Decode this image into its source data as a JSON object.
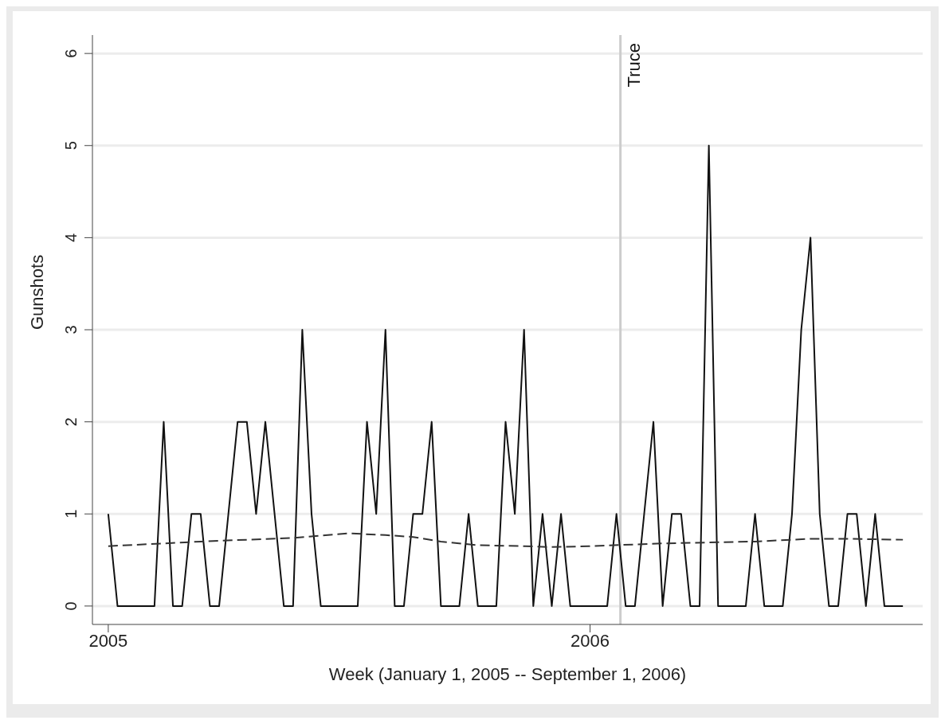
{
  "chart_data": {
    "type": "line",
    "xlabel": "Week (January 1, 2005 -- September 1, 2006)",
    "ylabel": "Gunshots",
    "x": [
      "2005-01-01",
      "2005-01-08",
      "2005-01-15",
      "2005-01-22",
      "2005-01-29",
      "2005-02-05",
      "2005-02-12",
      "2005-02-19",
      "2005-02-26",
      "2005-03-05",
      "2005-03-12",
      "2005-03-19",
      "2005-03-26",
      "2005-04-02",
      "2005-04-09",
      "2005-04-16",
      "2005-04-23",
      "2005-04-30",
      "2005-05-07",
      "2005-05-14",
      "2005-05-21",
      "2005-05-28",
      "2005-06-04",
      "2005-06-11",
      "2005-06-18",
      "2005-06-25",
      "2005-07-02",
      "2005-07-09",
      "2005-07-16",
      "2005-07-23",
      "2005-07-30",
      "2005-08-06",
      "2005-08-13",
      "2005-08-20",
      "2005-08-27",
      "2005-09-03",
      "2005-09-10",
      "2005-09-17",
      "2005-09-24",
      "2005-10-01",
      "2005-10-08",
      "2005-10-15",
      "2005-10-22",
      "2005-10-29",
      "2005-11-05",
      "2005-11-12",
      "2005-11-19",
      "2005-11-26",
      "2005-12-03",
      "2005-12-10",
      "2005-12-17",
      "2005-12-24",
      "2005-12-31",
      "2006-01-07",
      "2006-01-14",
      "2006-01-21",
      "2006-01-28",
      "2006-02-04",
      "2006-02-11",
      "2006-02-18",
      "2006-02-25",
      "2006-03-04",
      "2006-03-11",
      "2006-03-18",
      "2006-03-25",
      "2006-04-01",
      "2006-04-08",
      "2006-04-15",
      "2006-04-22",
      "2006-04-29",
      "2006-05-06",
      "2006-05-13",
      "2006-05-20",
      "2006-05-27",
      "2006-06-03",
      "2006-06-10",
      "2006-06-17",
      "2006-06-24",
      "2006-07-01",
      "2006-07-08",
      "2006-07-15",
      "2006-07-22",
      "2006-07-29",
      "2006-08-05",
      "2006-08-12",
      "2006-08-19",
      "2006-08-26"
    ],
    "series": [
      {
        "color": "#111111",
        "line_style": "solid",
        "values": [
          1,
          0,
          0,
          0,
          0,
          0,
          2,
          0,
          0,
          1,
          1,
          0,
          0,
          1,
          2,
          2,
          1,
          2,
          1,
          0,
          0,
          3,
          1,
          0,
          0,
          0,
          0,
          0,
          2,
          1,
          3,
          0,
          0,
          1,
          1,
          2,
          0,
          0,
          0,
          1,
          0,
          0,
          0,
          2,
          1,
          3,
          0,
          1,
          0,
          1,
          0,
          0,
          0,
          0,
          0,
          1,
          0,
          0,
          1,
          2,
          0,
          1,
          1,
          0,
          0,
          5,
          0,
          0,
          0,
          0,
          1,
          0,
          0,
          0,
          1,
          3,
          4,
          1,
          0,
          0,
          1,
          1,
          0,
          1,
          0,
          0,
          0
        ]
      },
      {
        "color": "#333333",
        "line_style": "dashed",
        "x": [
          "2005-01-01",
          "2005-03-12",
          "2005-05-21",
          "2005-07-02",
          "2005-07-30",
          "2005-08-20",
          "2005-09-10",
          "2005-10-08",
          "2005-11-12",
          "2005-12-03",
          "2005-12-31",
          "2006-02-25",
          "2006-05-06",
          "2006-06-17",
          "2006-07-15",
          "2006-08-26"
        ],
        "values": [
          0.65,
          0.7,
          0.74,
          0.79,
          0.77,
          0.75,
          0.7,
          0.66,
          0.65,
          0.64,
          0.65,
          0.68,
          0.7,
          0.73,
          0.73,
          0.72
        ]
      }
    ],
    "xlim": [
      "2004-12-20",
      "2006-09-10"
    ],
    "xticks": [
      "2005",
      "2006"
    ],
    "ylim": [
      -0.2,
      6.2
    ],
    "yticks": [
      0,
      1,
      2,
      3,
      4,
      5,
      6
    ],
    "grid": "y",
    "legend": false,
    "marker": "none",
    "ref_lines": [
      {
        "axis": "x",
        "value": "2006-01-24",
        "label": "Truce",
        "color": "#cccccc"
      }
    ]
  }
}
